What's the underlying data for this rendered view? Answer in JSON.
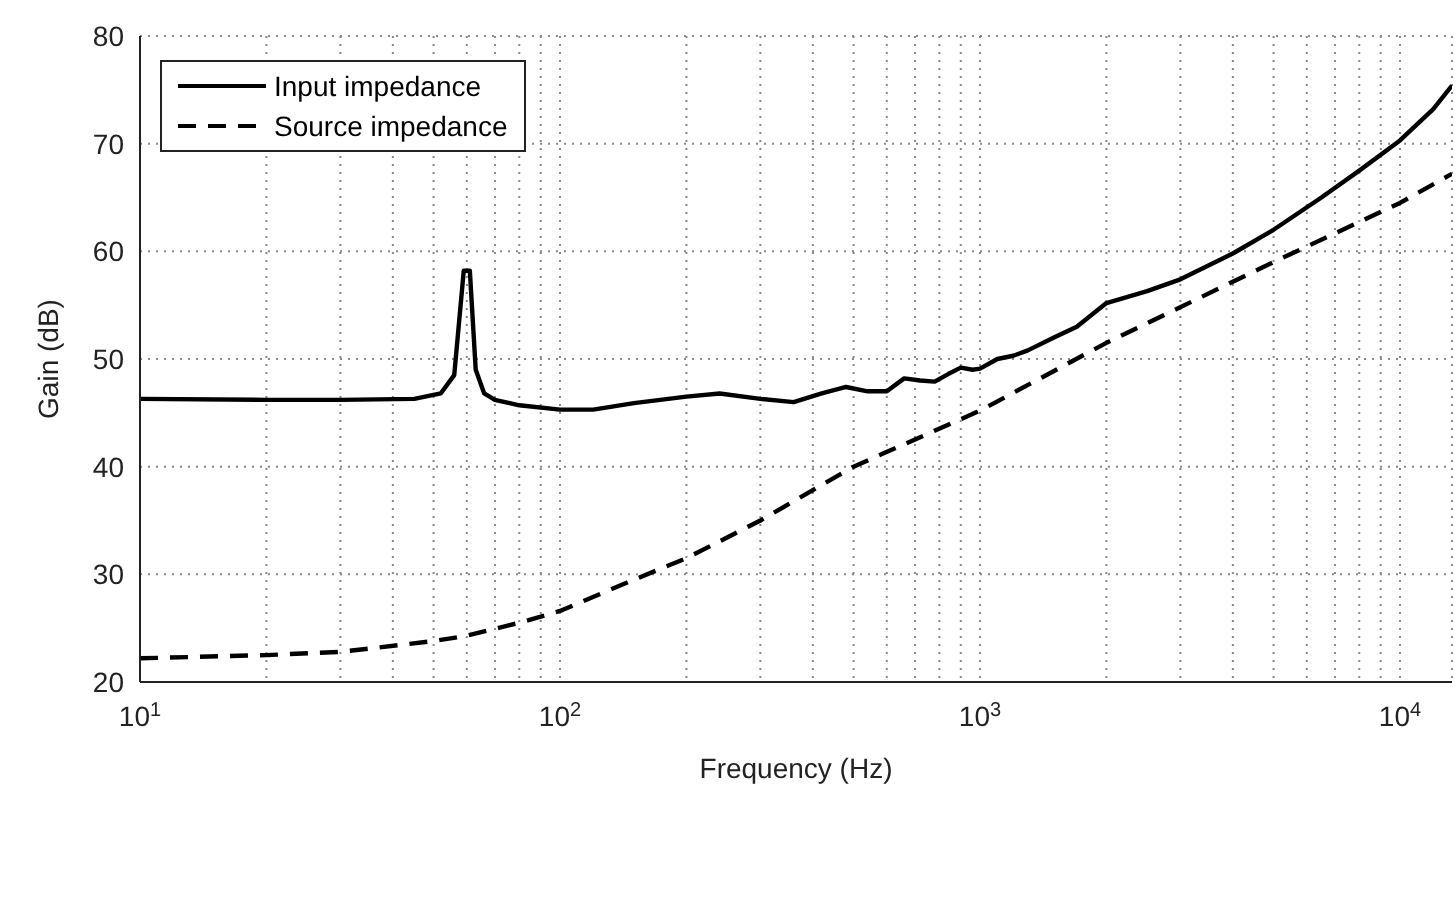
{
  "chart_data": {
    "type": "line",
    "xlabel": "Frequency (Hz)",
    "ylabel": "Gain (dB)",
    "log": "x",
    "grid": true,
    "legend": "top left",
    "xlim": [
      10,
      13300
    ],
    "ylim": [
      20,
      80
    ],
    "xticks": [
      {
        "value": 10,
        "label": "10$^{1}$"
      },
      {
        "value": 20,
        "label": null
      },
      {
        "value": 30,
        "label": null
      },
      {
        "value": 40,
        "label": null
      },
      {
        "value": 50,
        "label": null
      },
      {
        "value": 60,
        "label": null
      },
      {
        "value": 70,
        "label": null
      },
      {
        "value": 80,
        "label": null
      },
      {
        "value": 90,
        "label": null
      },
      {
        "value": 100,
        "label": "10$^{2}$"
      },
      {
        "value": 200,
        "label": null
      },
      {
        "value": 300,
        "label": null
      },
      {
        "value": 400,
        "label": null
      },
      {
        "value": 500,
        "label": null
      },
      {
        "value": 600,
        "label": null
      },
      {
        "value": 700,
        "label": null
      },
      {
        "value": 800,
        "label": null
      },
      {
        "value": 900,
        "label": null
      },
      {
        "value": 1000,
        "label": "10$^{3}$"
      },
      {
        "value": 2000,
        "label": null
      },
      {
        "value": 3000,
        "label": null
      },
      {
        "value": 4000,
        "label": null
      },
      {
        "value": 5000,
        "label": null
      },
      {
        "value": 6000,
        "label": null
      },
      {
        "value": 7000,
        "label": null
      },
      {
        "value": 8000,
        "label": null
      },
      {
        "value": 9000,
        "label": null
      },
      {
        "value": 10000,
        "label": "10$^{4}$"
      }
    ],
    "yticks": [
      20,
      30,
      40,
      50,
      60,
      70,
      80
    ],
    "series": [
      {
        "name": "Input impedance",
        "color": "#000000",
        "line_style": "solid",
        "x": [
          10,
          20,
          30,
          45,
          52,
          56,
          59,
          61,
          63,
          66,
          70,
          80,
          100,
          120,
          150,
          200,
          240,
          300,
          360,
          420,
          480,
          540,
          600,
          660,
          720,
          780,
          840,
          900,
          960,
          1000,
          1100,
          1200,
          1300,
          1500,
          1700,
          2000,
          2500,
          3000,
          4000,
          5000,
          6500,
          8000,
          10000,
          12000,
          13300
        ],
        "values": [
          46.3,
          46.2,
          46.2,
          46.3,
          46.8,
          48.5,
          58.2,
          58.2,
          49,
          46.8,
          46.2,
          45.7,
          45.3,
          45.3,
          45.9,
          46.5,
          46.8,
          46.3,
          46,
          46.8,
          47.4,
          47,
          47,
          48.2,
          48,
          47.9,
          48.6,
          49.2,
          49,
          49.1,
          50,
          50.3,
          50.8,
          52,
          53,
          55.2,
          56.3,
          57.4,
          59.8,
          62,
          65,
          67.5,
          70.3,
          73.2,
          75.4
        ]
      },
      {
        "name": "Source impedance",
        "color": "#000000",
        "line_style": "dashed",
        "x": [
          10,
          20,
          30,
          50,
          60,
          80,
          100,
          150,
          200,
          300,
          500,
          1000,
          2000,
          5000,
          10000,
          13300
        ],
        "values": [
          22.2,
          22.5,
          22.8,
          23.8,
          24.3,
          25.5,
          26.6,
          29.5,
          31.5,
          35,
          40,
          45.2,
          51.5,
          59,
          64.5,
          67.2
        ]
      }
    ]
  }
}
